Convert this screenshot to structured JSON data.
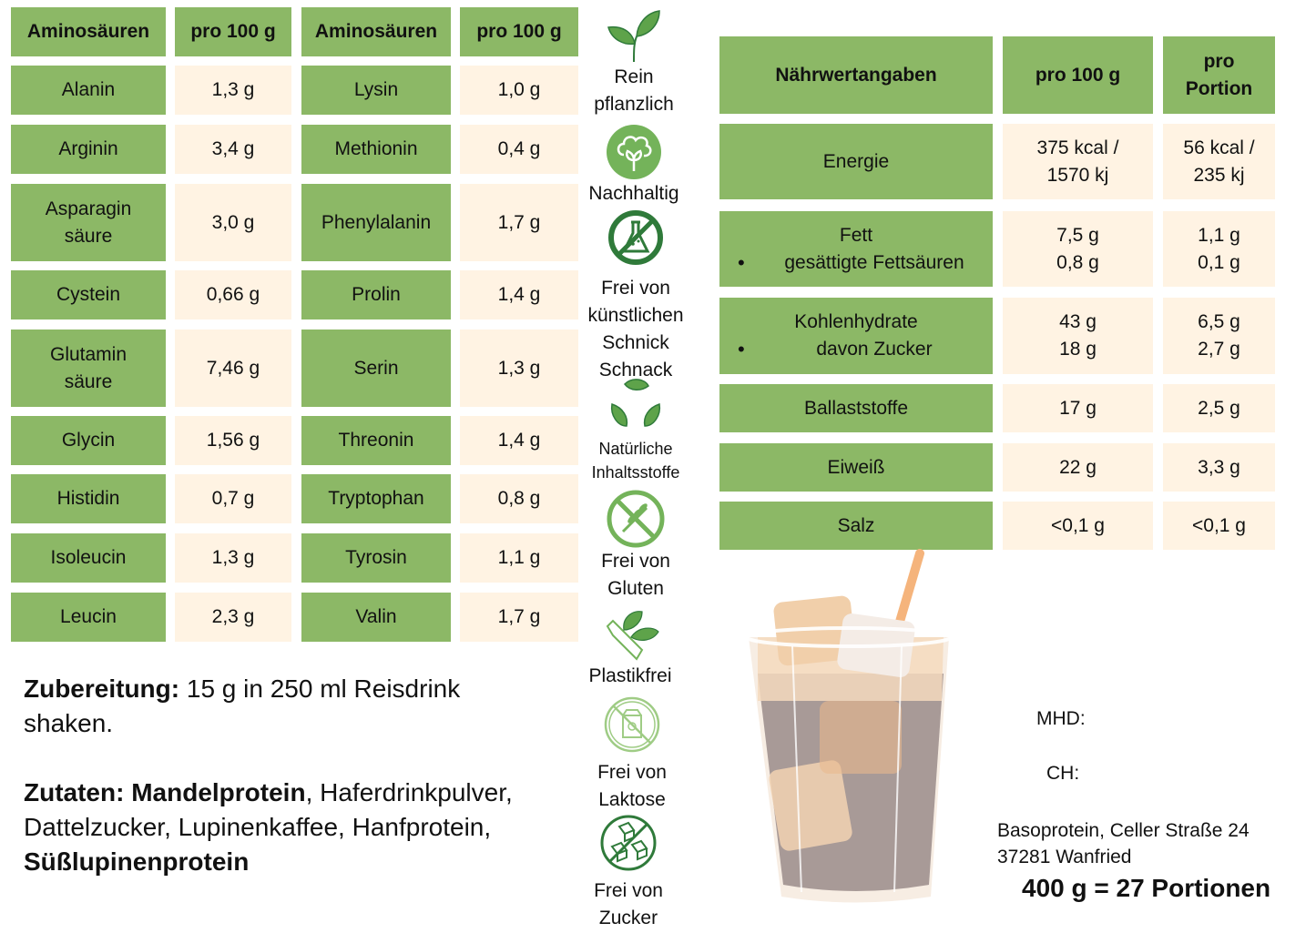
{
  "amino_table": {
    "headers": [
      "Aminosäuren",
      "pro 100 g",
      "Aminosäuren",
      "pro 100 g"
    ],
    "left": [
      {
        "name": "Alanin",
        "value": "1,3 g"
      },
      {
        "name": "Arginin",
        "value": "3,4 g"
      },
      {
        "name": "Asparagin\nsäure",
        "value": "3,0 g"
      },
      {
        "name": "Cystein",
        "value": "0,66 g"
      },
      {
        "name": "Glutamin\nsäure",
        "value": "7,46 g"
      },
      {
        "name": "Glycin",
        "value": "1,56 g"
      },
      {
        "name": "Histidin",
        "value": "0,7 g"
      },
      {
        "name": "Isoleucin",
        "value": "1,3 g"
      },
      {
        "name": "Leucin",
        "value": "2,3 g"
      }
    ],
    "right": [
      {
        "name": "Lysin",
        "value": "1,0 g"
      },
      {
        "name": "Methionin",
        "value": "0,4 g"
      },
      {
        "name": "Phenylalanin",
        "value": "1,7 g"
      },
      {
        "name": "Prolin",
        "value": "1,4 g"
      },
      {
        "name": "Serin",
        "value": "1,3 g"
      },
      {
        "name": "Threonin",
        "value": "1,4 g"
      },
      {
        "name": "Tryptophan",
        "value": "0,8 g"
      },
      {
        "name": "Tyrosin",
        "value": "1,1 g"
      },
      {
        "name": "Valin",
        "value": "1,7 g"
      }
    ]
  },
  "badges": [
    {
      "icon": "sprout-icon",
      "label": "Rein\npflanzlich"
    },
    {
      "icon": "cotton-icon",
      "label": "Nachhaltig"
    },
    {
      "icon": "no-chemicals-icon",
      "label": "Frei von\nkünstlichen\nSchnick\nSchnack"
    },
    {
      "icon": "recycle-leaves-icon",
      "label": "Natürliche\nInhaltsstoffe"
    },
    {
      "icon": "no-gluten-icon",
      "label": "Frei von\nGluten"
    },
    {
      "icon": "plastic-free-icon",
      "label": "Plastikfrei"
    },
    {
      "icon": "no-lactose-icon",
      "label": "Frei von\nLaktose"
    },
    {
      "icon": "no-sugar-icon",
      "label": "Frei von\nZucker"
    }
  ],
  "nutrition_table": {
    "headers": [
      "Nährwertangaben",
      "pro 100 g",
      "pro\nPortion"
    ],
    "rows": [
      {
        "label": "Energie",
        "sub": "",
        "per100": "375 kcal /\n1570 kj",
        "portion": "56 kcal /\n235 kj"
      },
      {
        "label": "Fett",
        "sub": "gesättigte Fettsäuren",
        "per100": "7,5 g\n0,8 g",
        "portion": "1,1 g\n0,1 g"
      },
      {
        "label": "Kohlenhydrate",
        "sub": "davon Zucker",
        "per100": "43 g\n18 g",
        "portion": "6,5 g\n2,7 g"
      },
      {
        "label": "Ballaststoffe",
        "sub": "",
        "per100": "17 g",
        "portion": "2,5 g"
      },
      {
        "label": "Eiweiß",
        "sub": "",
        "per100": "22 g",
        "portion": "3,3 g"
      },
      {
        "label": "Salz",
        "sub": "",
        "per100": "<0,1 g",
        "portion": "<0,1 g"
      }
    ]
  },
  "preparation": {
    "label": "Zubereitung:",
    "text": " 15 g in 250 ml Reisdrink shaken."
  },
  "ingredients": {
    "label": "Zutaten:",
    "bold_first": "Mandelprotein",
    "rest": ", Haferdrinkpulver, Dattelzucker, Lupinenkaffee, Hanfprotein,",
    "bold_last": "Süßlupinenprotein"
  },
  "info": {
    "mhd": "MHD:",
    "ch": "CH:",
    "address_line1": "Basoprotein, Celler Straße 24",
    "address_line2": "37281 Wanfried",
    "portions": "400 g = 27 Portionen"
  },
  "colors": {
    "green": "#8cb866",
    "cream": "#fff3e3",
    "icon_green": "#5ea34a",
    "icon_dark_green": "#2f7a3a"
  }
}
